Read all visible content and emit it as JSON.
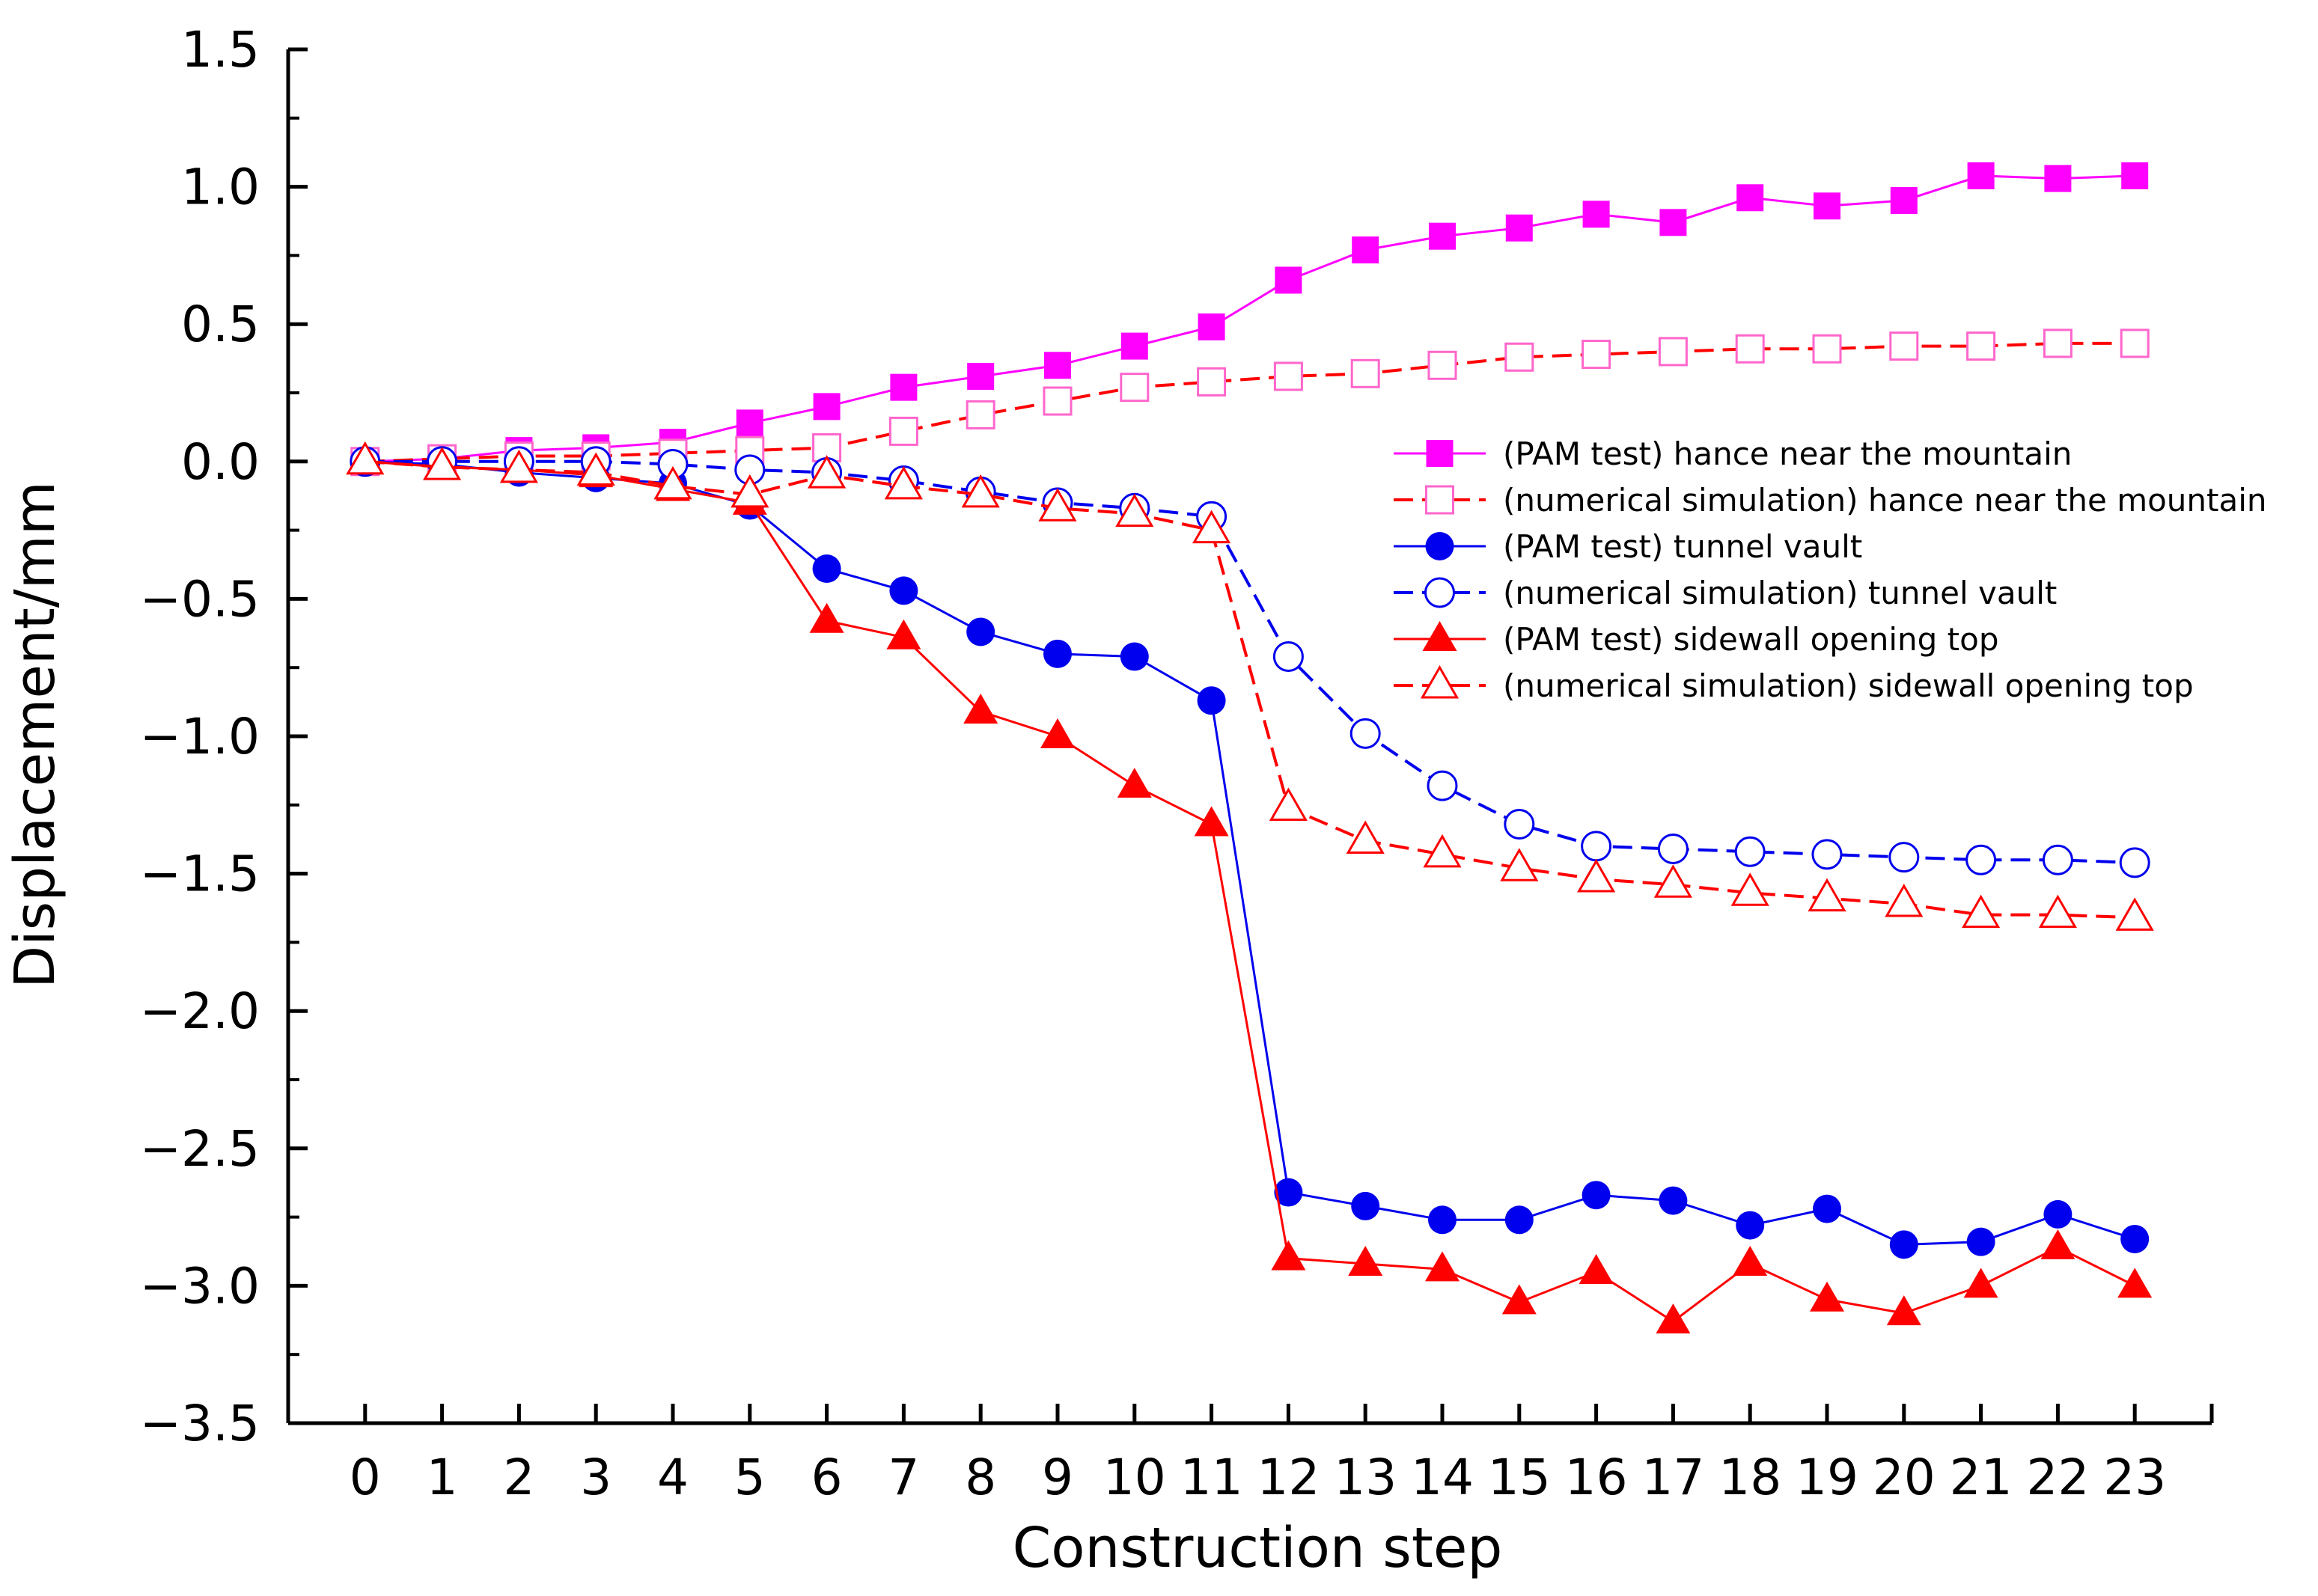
{
  "chart_data": {
    "type": "line",
    "title": "",
    "xlabel": "Construction step",
    "ylabel": "Displacement/mm",
    "xlim": [
      -1,
      24
    ],
    "ylim": [
      -3.5,
      1.5
    ],
    "grid": false,
    "legend_position": "center-right",
    "x": [
      0,
      1,
      2,
      3,
      4,
      5,
      6,
      7,
      8,
      9,
      10,
      11,
      12,
      13,
      14,
      15,
      16,
      17,
      18,
      19,
      20,
      21,
      22,
      23
    ],
    "x_tick_labels": [
      "0",
      "1",
      "2",
      "3",
      "4",
      "5",
      "6",
      "7",
      "8",
      "9",
      "10",
      "11",
      "12",
      "13",
      "14",
      "15",
      "16",
      "17",
      "18",
      "19",
      "20",
      "21",
      "22",
      "23"
    ],
    "y_ticks": [
      1.5,
      1.0,
      0.5,
      0.0,
      -0.5,
      -1.0,
      -1.5,
      -2.0,
      -2.5,
      -3.0,
      -3.5
    ],
    "y_tick_labels": [
      "1.5",
      "1.0",
      "0.5",
      "0.0",
      "−0.5",
      "−1.0",
      "−1.5",
      "−2.0",
      "−2.5",
      "−3.0",
      "−3.5"
    ],
    "series": [
      {
        "name": "(PAM test)  hance near the mountain",
        "color": "#ff00ff",
        "line_color": "#ff00ff",
        "dash": "solid",
        "marker": "square",
        "filled": true,
        "values": [
          0.0,
          0.01,
          0.04,
          0.05,
          0.07,
          0.14,
          0.2,
          0.27,
          0.31,
          0.35,
          0.42,
          0.49,
          0.66,
          0.77,
          0.82,
          0.85,
          0.9,
          0.87,
          0.96,
          0.93,
          0.95,
          1.04,
          1.03,
          1.04
        ]
      },
      {
        "name": "(numerical simulation)  hance near the mountain",
        "color": "#ff66cc",
        "line_color": "#ff0000",
        "dash": "dash",
        "marker": "square",
        "filled": false,
        "values": [
          0.0,
          0.01,
          0.02,
          0.02,
          0.03,
          0.04,
          0.05,
          0.11,
          0.17,
          0.22,
          0.27,
          0.29,
          0.31,
          0.32,
          0.35,
          0.38,
          0.39,
          0.4,
          0.41,
          0.41,
          0.42,
          0.42,
          0.43,
          0.43
        ]
      },
      {
        "name": "(PAM test)  tunnel vault",
        "color": "#0000ee",
        "line_color": "#0000ee",
        "dash": "solid",
        "marker": "circle",
        "filled": true,
        "values": [
          0.0,
          -0.01,
          -0.04,
          -0.06,
          -0.08,
          -0.16,
          -0.39,
          -0.47,
          -0.62,
          -0.7,
          -0.71,
          -0.87,
          -2.66,
          -2.71,
          -2.76,
          -2.76,
          -2.67,
          -2.69,
          -2.78,
          -2.72,
          -2.85,
          -2.84,
          -2.74,
          -2.83
        ]
      },
      {
        "name": "(numerical simulation)  tunnel vault",
        "color": "#0000ee",
        "line_color": "#0000ee",
        "dash": "dash",
        "marker": "circle",
        "filled": false,
        "values": [
          0.0,
          0.0,
          0.0,
          0.0,
          -0.01,
          -0.03,
          -0.04,
          -0.07,
          -0.11,
          -0.15,
          -0.17,
          -0.2,
          -0.71,
          -0.99,
          -1.18,
          -1.32,
          -1.4,
          -1.41,
          -1.42,
          -1.43,
          -1.44,
          -1.45,
          -1.45,
          -1.46
        ]
      },
      {
        "name": "(PAM test)  sidewall opening top",
        "color": "#ff0000",
        "line_color": "#ff0000",
        "dash": "solid",
        "marker": "triangle",
        "filled": true,
        "values": [
          0.0,
          -0.02,
          -0.03,
          -0.05,
          -0.1,
          -0.15,
          -0.58,
          -0.64,
          -0.91,
          -1.0,
          -1.18,
          -1.32,
          -2.9,
          -2.92,
          -2.94,
          -3.06,
          -2.95,
          -3.13,
          -2.92,
          -3.05,
          -3.1,
          -3.0,
          -2.86,
          -3.0
        ]
      },
      {
        "name": "(numerical simulation)  sidewall opening top",
        "color": "#ff0000",
        "line_color": "#ff0000",
        "dash": "dash",
        "marker": "triangle",
        "filled": false,
        "values": [
          0.0,
          -0.02,
          -0.03,
          -0.04,
          -0.09,
          -0.12,
          -0.05,
          -0.09,
          -0.12,
          -0.17,
          -0.19,
          -0.25,
          -1.26,
          -1.38,
          -1.43,
          -1.48,
          -1.52,
          -1.54,
          -1.57,
          -1.59,
          -1.61,
          -1.65,
          -1.65,
          -1.66
        ]
      }
    ]
  }
}
